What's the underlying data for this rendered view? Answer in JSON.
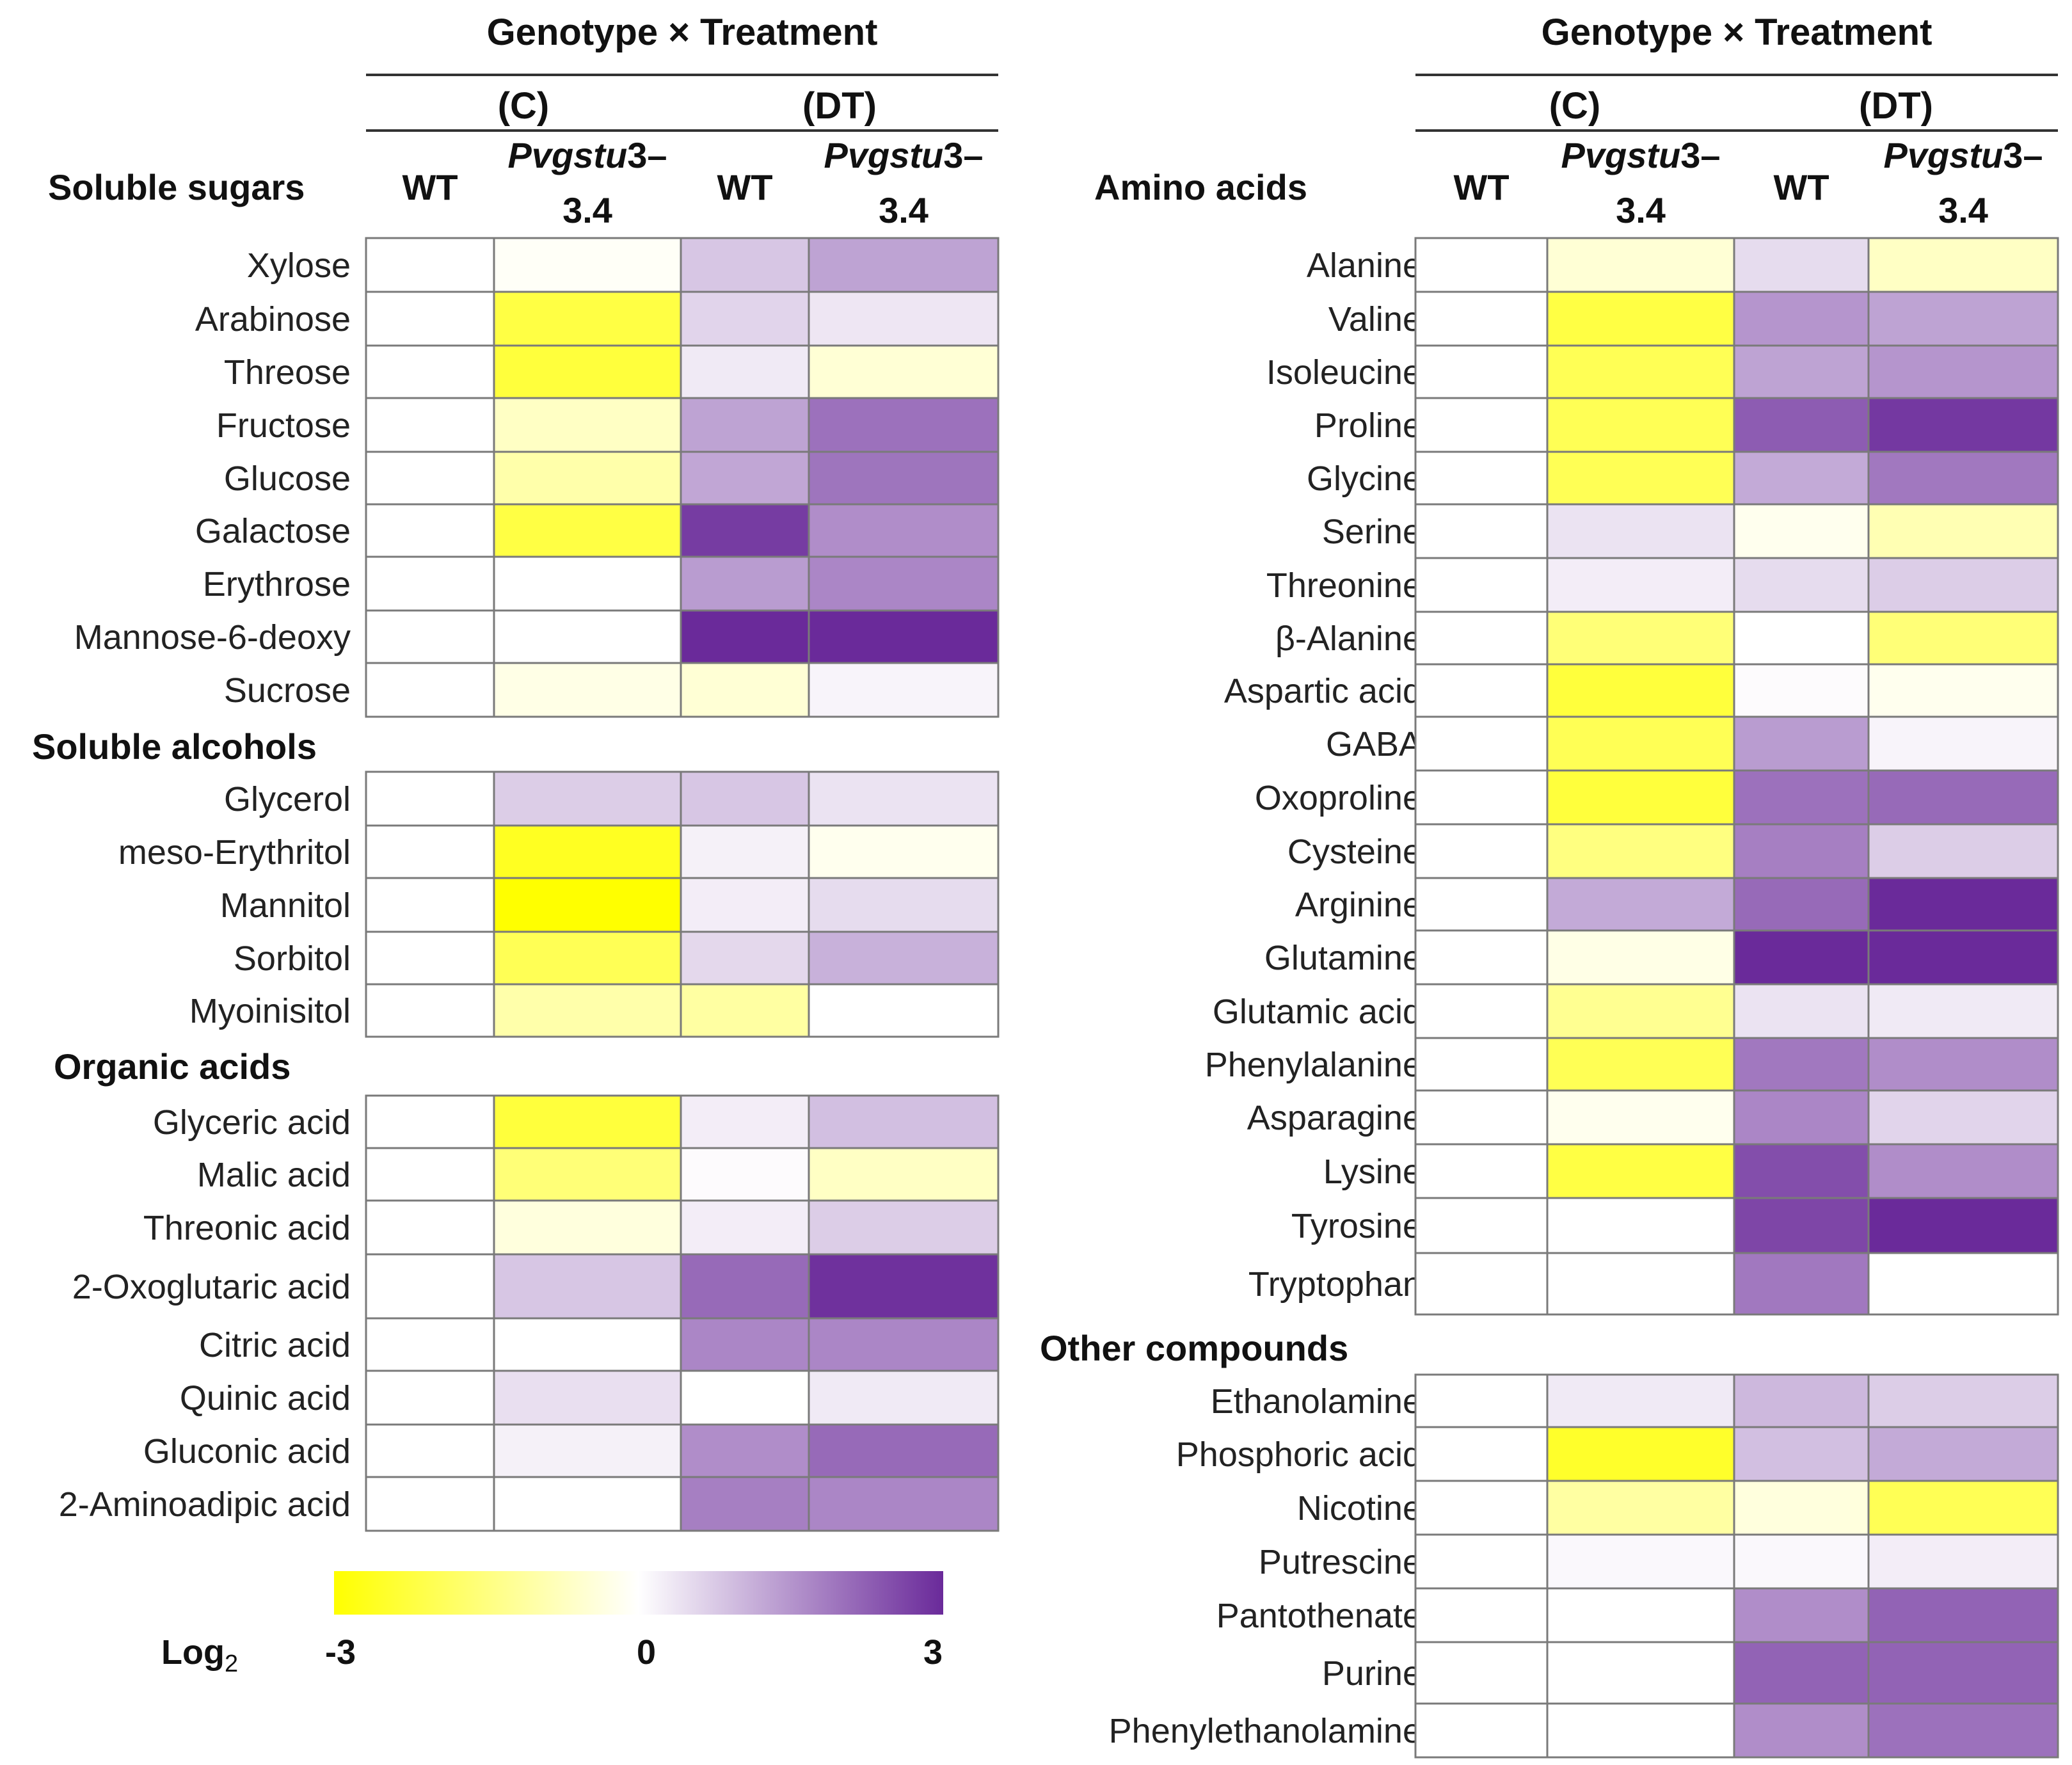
{
  "chart_data": {
    "type": "heatmap",
    "color_scale": {
      "label": "Log",
      "label_subscript": "2",
      "min": -3,
      "mid": 0,
      "max": 3,
      "tick_labels": [
        "-3",
        "0",
        "3"
      ],
      "low_color": "#ffff00",
      "mid_color": "#ffffff",
      "high_color": "#6a2a9a"
    },
    "column_header": {
      "title": "Genotype × Treatment",
      "groups": [
        {
          "label": "(C)",
          "columns": [
            {
              "label": "WT",
              "italic": false
            },
            {
              "label_italic": "Pvgstu",
              "label_rest": "3–",
              "label_line2": "3.4"
            }
          ]
        },
        {
          "label": "(DT)",
          "columns": [
            {
              "label": "WT",
              "italic": false
            },
            {
              "label_italic": "Pvgstu",
              "label_rest": "3–",
              "label_line2": "3.4"
            }
          ]
        }
      ],
      "columns": [
        "C WT",
        "C Pvgstu3–3.4",
        "DT WT",
        "DT Pvgstu3–3.4"
      ]
    },
    "panels": [
      {
        "sections": [
          {
            "title": "Soluble sugars",
            "rows": [
              {
                "name": "Xylose",
                "values": [
                  0,
                  -0.1,
                  0.8,
                  1.3
                ]
              },
              {
                "name": "Arabinose",
                "values": [
                  0,
                  -2.2,
                  0.6,
                  0.35
                ]
              },
              {
                "name": "Threose",
                "values": [
                  0,
                  -2.3,
                  0.3,
                  -0.5
                ]
              },
              {
                "name": "Fructose",
                "values": [
                  0,
                  -0.7,
                  1.3,
                  2.0
                ]
              },
              {
                "name": "Glucose",
                "values": [
                  0,
                  -1.0,
                  1.25,
                  1.95
                ]
              },
              {
                "name": "Galactose",
                "values": [
                  0,
                  -2.2,
                  2.75,
                  1.6
                ]
              },
              {
                "name": "Erythrose",
                "values": [
                  0,
                  0,
                  1.4,
                  1.7
                ]
              },
              {
                "name": "Mannose-6-deoxy",
                "values": [
                  0,
                  0,
                  3.0,
                  3.0
                ]
              },
              {
                "name": "Sucrose",
                "values": [
                  0,
                  -0.3,
                  -0.5,
                  0.15
                ]
              }
            ]
          },
          {
            "title": "Soluble alcohols",
            "rows": [
              {
                "name": "Glycerol",
                "values": [
                  0,
                  0.7,
                  0.8,
                  0.4
                ]
              },
              {
                "name": "meso-Erythritol",
                "values": [
                  0,
                  -2.6,
                  0.2,
                  -0.2
                ]
              },
              {
                "name": "Mannitol",
                "values": [
                  0,
                  -3.0,
                  0.25,
                  0.5
                ]
              },
              {
                "name": "Sorbitol",
                "values": [
                  0,
                  -2.0,
                  0.55,
                  1.1
                ]
              },
              {
                "name": "Myoinisitol",
                "values": [
                  0,
                  -1.0,
                  -1.1,
                  0
                ]
              }
            ]
          },
          {
            "title": "Organic acids",
            "rows": [
              {
                "name": "Glyceric acid",
                "values": [
                  0,
                  -2.3,
                  0.25,
                  0.9
                ]
              },
              {
                "name": "Malic acid",
                "values": [
                  0,
                  -1.6,
                  0.05,
                  -0.7
                ]
              },
              {
                "name": "Threonic acid",
                "values": [
                  0,
                  -0.4,
                  0.25,
                  0.7
                ]
              },
              {
                "name": "2-Oxoglutaric acid",
                "values": [
                  0,
                  0.8,
                  2.1,
                  2.9
                ]
              },
              {
                "name": "Citric acid",
                "values": [
                  0,
                  0,
                  1.7,
                  1.7
                ]
              },
              {
                "name": "Quinic acid",
                "values": [
                  0,
                  0.45,
                  0,
                  0.3
                ]
              },
              {
                "name": "Gluconic acid",
                "values": [
                  0,
                  0.2,
                  1.6,
                  2.1
                ]
              },
              {
                "name": "2-Aminoadipic acid",
                "values": [
                  0,
                  0,
                  1.8,
                  1.7
                ]
              }
            ]
          }
        ]
      },
      {
        "sections": [
          {
            "title": "Amino acids",
            "rows": [
              {
                "name": "Alanine",
                "values": [
                  0,
                  -0.5,
                  0.5,
                  -0.7
                ]
              },
              {
                "name": "Valine",
                "values": [
                  0,
                  -2.2,
                  1.5,
                  1.3
                ]
              },
              {
                "name": "Isoleucine",
                "values": [
                  0,
                  -2.0,
                  1.3,
                  1.5
                ]
              },
              {
                "name": "Proline",
                "values": [
                  0,
                  -2.0,
                  2.3,
                  2.8
                ]
              },
              {
                "name": "Glycine",
                "values": [
                  0,
                  -2.0,
                  1.2,
                  1.9
                ]
              },
              {
                "name": "Serine",
                "values": [
                  0,
                  0.4,
                  -0.2,
                  -0.9
                ]
              },
              {
                "name": "Threonine",
                "values": [
                  0,
                  0.25,
                  0.5,
                  0.7
                ]
              },
              {
                "name": "β-Alanine",
                "values": [
                  0,
                  -1.6,
                  0,
                  -1.6
                ]
              },
              {
                "name": "Aspartic acid",
                "values": [
                  0,
                  -2.3,
                  0.05,
                  -0.2
                ]
              },
              {
                "name": "GABA",
                "values": [
                  0,
                  -2.0,
                  1.4,
                  0.15
                ]
              },
              {
                "name": "Oxoproline",
                "values": [
                  0,
                  -2.3,
                  2.0,
                  2.1
                ]
              },
              {
                "name": "Cysteine",
                "values": [
                  0,
                  -1.5,
                  1.8,
                  0.7
                ]
              },
              {
                "name": "Arginine",
                "values": [
                  0,
                  1.2,
                  2.1,
                  3.0
                ]
              },
              {
                "name": "Glutamine",
                "values": [
                  0,
                  -0.3,
                  3.0,
                  3.0
                ]
              },
              {
                "name": "Glutamic acid",
                "values": [
                  0,
                  -1.3,
                  0.4,
                  0.3
                ]
              },
              {
                "name": "Phenylalanine",
                "values": [
                  0,
                  -2.0,
                  1.9,
                  1.6
                ]
              },
              {
                "name": "Asparagine",
                "values": [
                  0,
                  -0.2,
                  1.7,
                  0.6
                ]
              },
              {
                "name": "Lysine",
                "values": [
                  0,
                  -2.2,
                  2.5,
                  1.6
                ]
              },
              {
                "name": "Tyrosine",
                "values": [
                  0,
                  0,
                  2.6,
                  3.0
                ]
              },
              {
                "name": "Tryptophan",
                "values": [
                  0,
                  0,
                  1.9,
                  0
                ]
              }
            ]
          },
          {
            "title": "Other compounds",
            "rows": [
              {
                "name": "Ethanolamine",
                "values": [
                  0,
                  0.3,
                  1.0,
                  0.7
                ]
              },
              {
                "name": "Phosphoric acid",
                "values": [
                  0,
                  -2.5,
                  0.9,
                  1.2
                ]
              },
              {
                "name": "Nicotine",
                "values": [
                  0,
                  -1.1,
                  -0.4,
                  -2.0
                ]
              },
              {
                "name": "Putrescine",
                "values": [
                  0,
                  0.1,
                  0.1,
                  0.25
                ]
              },
              {
                "name": "Pantothenate",
                "values": [
                  0,
                  0,
                  1.6,
                  2.2
                ]
              },
              {
                "name": "Purine",
                "values": [
                  0,
                  0,
                  2.2,
                  2.2
                ]
              },
              {
                "name": "Phenylethanolamine",
                "values": [
                  0,
                  0,
                  1.6,
                  2.0
                ]
              }
            ]
          }
        ]
      }
    ]
  }
}
